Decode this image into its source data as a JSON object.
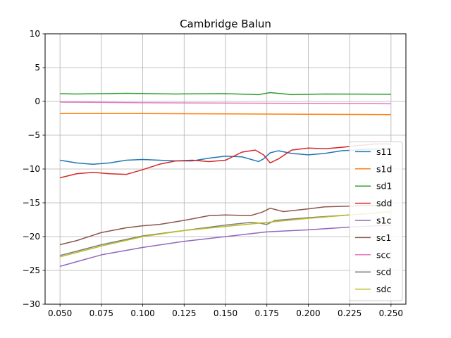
{
  "chart_data": {
    "type": "line",
    "title": "Cambridge Balun",
    "xlabel": "",
    "ylabel": "",
    "xlim": [
      0.041,
      0.259
    ],
    "ylim": [
      -30,
      10
    ],
    "xticks": [
      "0.050",
      "0.075",
      "0.100",
      "0.125",
      "0.150",
      "0.175",
      "0.200",
      "0.225",
      "0.250"
    ],
    "yticks": [
      "10",
      "5",
      "0",
      "−5",
      "−10",
      "−15",
      "−20",
      "−25",
      "−30"
    ],
    "grid": true,
    "legend_position": "lower-right",
    "series": [
      {
        "name": "s11",
        "color": "#1f77b4",
        "points": [
          [
            0.05,
            -8.7
          ],
          [
            0.06,
            -9.1
          ],
          [
            0.07,
            -9.3
          ],
          [
            0.08,
            -9.1
          ],
          [
            0.09,
            -8.7
          ],
          [
            0.1,
            -8.6
          ],
          [
            0.11,
            -8.7
          ],
          [
            0.12,
            -8.8
          ],
          [
            0.13,
            -8.8
          ],
          [
            0.14,
            -8.4
          ],
          [
            0.15,
            -8.1
          ],
          [
            0.16,
            -8.2
          ],
          [
            0.17,
            -8.9
          ],
          [
            0.173,
            -8.5
          ],
          [
            0.177,
            -7.6
          ],
          [
            0.182,
            -7.3
          ],
          [
            0.19,
            -7.7
          ],
          [
            0.2,
            -7.9
          ],
          [
            0.21,
            -7.7
          ],
          [
            0.22,
            -7.3
          ],
          [
            0.235,
            -7.1
          ],
          [
            0.25,
            -7.0
          ]
        ]
      },
      {
        "name": "s1d",
        "color": "#ff7f0e",
        "points": [
          [
            0.05,
            -1.8
          ],
          [
            0.1,
            -1.8
          ],
          [
            0.15,
            -1.85
          ],
          [
            0.2,
            -1.9
          ],
          [
            0.25,
            -1.95
          ]
        ]
      },
      {
        "name": "sd1",
        "color": "#2ca02c",
        "points": [
          [
            0.05,
            1.15
          ],
          [
            0.06,
            1.1
          ],
          [
            0.09,
            1.2
          ],
          [
            0.12,
            1.1
          ],
          [
            0.15,
            1.15
          ],
          [
            0.17,
            1.0
          ],
          [
            0.177,
            1.3
          ],
          [
            0.19,
            1.0
          ],
          [
            0.21,
            1.1
          ],
          [
            0.25,
            1.05
          ]
        ]
      },
      {
        "name": "sdd",
        "color": "#d62728",
        "points": [
          [
            0.05,
            -11.3
          ],
          [
            0.06,
            -10.7
          ],
          [
            0.07,
            -10.5
          ],
          [
            0.08,
            -10.7
          ],
          [
            0.09,
            -10.8
          ],
          [
            0.1,
            -10.1
          ],
          [
            0.11,
            -9.3
          ],
          [
            0.12,
            -8.8
          ],
          [
            0.13,
            -8.7
          ],
          [
            0.14,
            -8.9
          ],
          [
            0.15,
            -8.7
          ],
          [
            0.16,
            -7.5
          ],
          [
            0.168,
            -7.2
          ],
          [
            0.173,
            -7.9
          ],
          [
            0.177,
            -9.1
          ],
          [
            0.182,
            -8.5
          ],
          [
            0.19,
            -7.2
          ],
          [
            0.2,
            -6.9
          ],
          [
            0.21,
            -7.0
          ],
          [
            0.22,
            -6.8
          ],
          [
            0.24,
            -6.3
          ],
          [
            0.25,
            -6.3
          ]
        ]
      },
      {
        "name": "s1c",
        "color": "#9467bd",
        "points": [
          [
            0.05,
            -24.4
          ],
          [
            0.075,
            -22.7
          ],
          [
            0.1,
            -21.6
          ],
          [
            0.125,
            -20.7
          ],
          [
            0.15,
            -20.0
          ],
          [
            0.175,
            -19.3
          ],
          [
            0.2,
            -19.0
          ],
          [
            0.225,
            -18.6
          ],
          [
            0.25,
            -18.3
          ]
        ]
      },
      {
        "name": "sc1",
        "color": "#8c564b",
        "points": [
          [
            0.05,
            -21.2
          ],
          [
            0.06,
            -20.6
          ],
          [
            0.075,
            -19.4
          ],
          [
            0.09,
            -18.7
          ],
          [
            0.1,
            -18.4
          ],
          [
            0.11,
            -18.2
          ],
          [
            0.125,
            -17.6
          ],
          [
            0.14,
            -16.9
          ],
          [
            0.15,
            -16.8
          ],
          [
            0.165,
            -16.9
          ],
          [
            0.172,
            -16.4
          ],
          [
            0.177,
            -15.8
          ],
          [
            0.185,
            -16.3
          ],
          [
            0.2,
            -15.9
          ],
          [
            0.21,
            -15.6
          ],
          [
            0.225,
            -15.5
          ],
          [
            0.25,
            -15.3
          ]
        ]
      },
      {
        "name": "scc",
        "color": "#e377c2",
        "points": [
          [
            0.05,
            -0.1
          ],
          [
            0.1,
            -0.2
          ],
          [
            0.15,
            -0.25
          ],
          [
            0.2,
            -0.3
          ],
          [
            0.25,
            -0.35
          ]
        ]
      },
      {
        "name": "scd",
        "color": "#7f7f7f",
        "points": [
          [
            0.05,
            -22.8
          ],
          [
            0.075,
            -21.2
          ],
          [
            0.1,
            -19.9
          ],
          [
            0.125,
            -19.1
          ],
          [
            0.15,
            -18.3
          ],
          [
            0.165,
            -17.9
          ],
          [
            0.17,
            -18.0
          ],
          [
            0.175,
            -18.2
          ],
          [
            0.18,
            -17.6
          ],
          [
            0.2,
            -17.2
          ],
          [
            0.225,
            -16.8
          ],
          [
            0.25,
            -16.3
          ]
        ]
      },
      {
        "name": "sdc",
        "color": "#bcbd22",
        "points": [
          [
            0.05,
            -23.0
          ],
          [
            0.075,
            -21.4
          ],
          [
            0.1,
            -20.0
          ],
          [
            0.125,
            -19.1
          ],
          [
            0.15,
            -18.5
          ],
          [
            0.175,
            -17.9
          ],
          [
            0.2,
            -17.3
          ],
          [
            0.225,
            -16.8
          ],
          [
            0.25,
            -16.3
          ]
        ]
      }
    ]
  }
}
